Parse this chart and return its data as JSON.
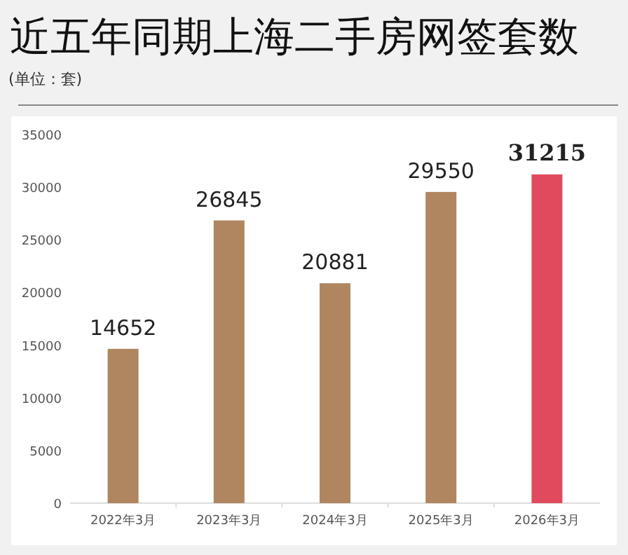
{
  "chart_data": {
    "type": "bar",
    "title": "近五年同期上海二手房网签套数",
    "subtitle": "(单位：套)",
    "categories": [
      "2022年3月",
      "2023年3月",
      "2024年3月",
      "2025年3月",
      "2026年3月"
    ],
    "values": [
      14652,
      26845,
      20881,
      29550,
      31215
    ],
    "colors": [
      "#b08660",
      "#b08660",
      "#b08660",
      "#b08660",
      "#e04a5c"
    ],
    "ylim": [
      0,
      35000
    ],
    "yticks": [
      0,
      5000,
      10000,
      15000,
      20000,
      25000,
      30000,
      35000
    ],
    "data_labels": true,
    "grid": false
  }
}
